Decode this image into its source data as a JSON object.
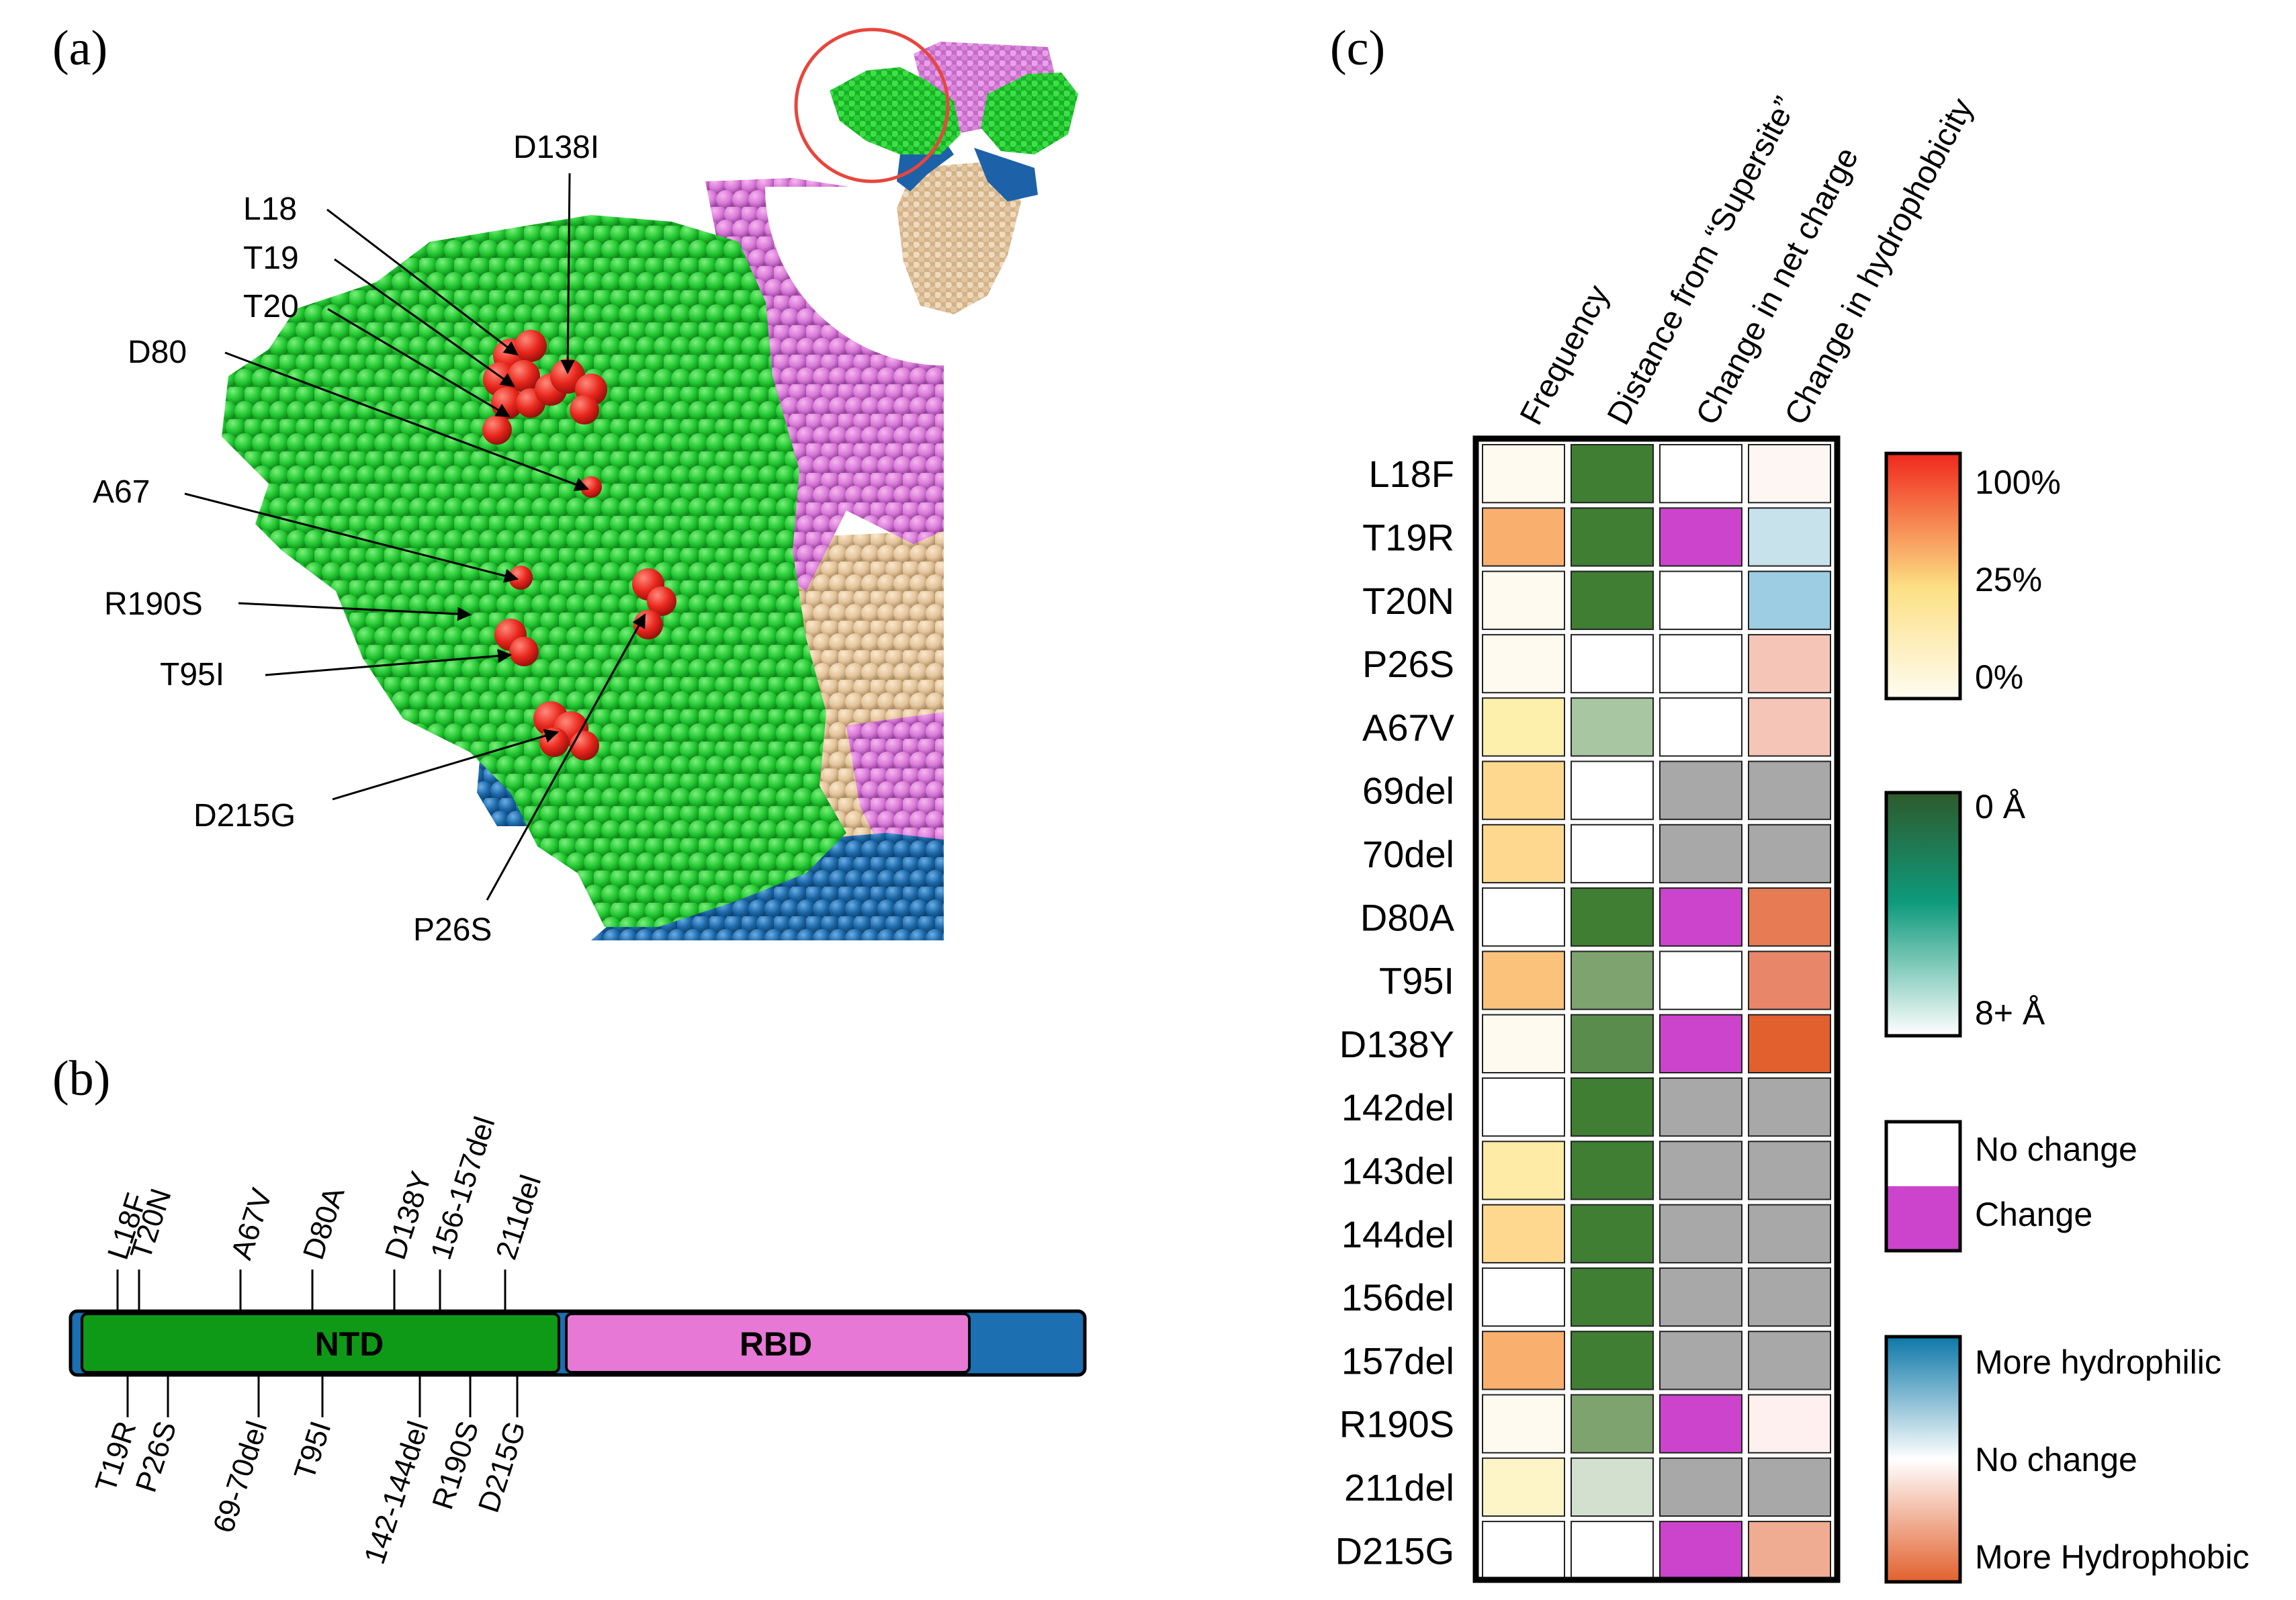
{
  "panels": {
    "a": "(a)",
    "b": "(b)",
    "c": "(c)"
  },
  "structure": {
    "callouts": [
      "D138I",
      "L18",
      "T19",
      "T20",
      "D80",
      "A67",
      "R190S",
      "T95I",
      "D215G",
      "P26S"
    ],
    "colors": {
      "ntd": "#22c832",
      "rbd_region": "#d87ad8",
      "s2": "#e3c39a",
      "blue": "#1c68a8",
      "mutation": "#e8261c",
      "circle": "#e8463c"
    }
  },
  "domain_map": {
    "domains": [
      {
        "name": "NTD",
        "color": "#0e9a16"
      },
      {
        "name": "RBD",
        "color": "#e878d6"
      }
    ],
    "bar_color": "#1c6fb0",
    "top_labels": [
      "L18F",
      "T20N",
      "A67V",
      "D80A",
      "D138Y",
      "156-157del",
      "211del"
    ],
    "bottom_labels": [
      "T19R",
      "P26S",
      "69-70del",
      "T95I",
      "142-144del",
      "R190S",
      "D215G"
    ]
  },
  "heatmap": {
    "columns": [
      "Frequency",
      "Distance from “Supersite”",
      "Change in net charge",
      "Change in hydrophobicity"
    ],
    "rows": [
      {
        "mutation": "L18F",
        "cells": [
          "#fefaf0",
          "#3f7e33",
          "#ffffff",
          "#fdf6f3"
        ]
      },
      {
        "mutation": "T19R",
        "cells": [
          "#f9b06e",
          "#3f7e33",
          "#cc44cc",
          "#c8e2ec"
        ]
      },
      {
        "mutation": "T20N",
        "cells": [
          "#fefaf0",
          "#3f7e33",
          "#ffffff",
          "#9ccde2"
        ]
      },
      {
        "mutation": "P26S",
        "cells": [
          "#fefaf0",
          "#ffffff",
          "#ffffff",
          "#f5c6b8"
        ]
      },
      {
        "mutation": "A67V",
        "cells": [
          "#fdefac",
          "#a9c6a3",
          "#ffffff",
          "#f5c6b8"
        ]
      },
      {
        "mutation": "69del",
        "cells": [
          "#fdd88e",
          "#ffffff",
          "#a8a8a8",
          "#a8a8a8"
        ]
      },
      {
        "mutation": "70del",
        "cells": [
          "#fdd88e",
          "#ffffff",
          "#a8a8a8",
          "#a8a8a8"
        ]
      },
      {
        "mutation": "D80A",
        "cells": [
          "#ffffff",
          "#3f7e33",
          "#cc44cc",
          "#e77b53"
        ]
      },
      {
        "mutation": "T95I",
        "cells": [
          "#fbc27c",
          "#7ea36e",
          "#ffffff",
          "#e8866a"
        ]
      },
      {
        "mutation": "D138Y",
        "cells": [
          "#fefaf0",
          "#5a8d4d",
          "#cc44cc",
          "#e25f2e"
        ]
      },
      {
        "mutation": "142del",
        "cells": [
          "#ffffff",
          "#3f7e33",
          "#a8a8a8",
          "#a8a8a8"
        ]
      },
      {
        "mutation": "143del",
        "cells": [
          "#fdeba6",
          "#3f7e33",
          "#a8a8a8",
          "#a8a8a8"
        ]
      },
      {
        "mutation": "144del",
        "cells": [
          "#fdd88e",
          "#3f7e33",
          "#a8a8a8",
          "#a8a8a8"
        ]
      },
      {
        "mutation": "156del",
        "cells": [
          "#ffffff",
          "#3f7e33",
          "#a8a8a8",
          "#a8a8a8"
        ]
      },
      {
        "mutation": "157del",
        "cells": [
          "#f9b06e",
          "#3f7e33",
          "#a8a8a8",
          "#a8a8a8"
        ]
      },
      {
        "mutation": "R190S",
        "cells": [
          "#fefaf0",
          "#7ea36e",
          "#cc44cc",
          "#fdf0ee"
        ]
      },
      {
        "mutation": "211del",
        "cells": [
          "#fdf5c8",
          "#d3e0cf",
          "#a8a8a8",
          "#a8a8a8"
        ]
      },
      {
        "mutation": "D215G",
        "cells": [
          "#ffffff",
          "#ffffff",
          "#cc44cc",
          "#efac92"
        ]
      }
    ]
  },
  "legends": {
    "frequency": {
      "labels": [
        "100%",
        "25%",
        "0%"
      ],
      "colors": [
        "#f0281c",
        "#fce084",
        "#fffcf2"
      ]
    },
    "distance": {
      "labels": [
        "0 Å",
        "8+ Å"
      ],
      "colors": [
        "#2e5a2c",
        "#0e9a7c",
        "#ffffff"
      ]
    },
    "charge": {
      "labels": [
        "No change",
        "Change"
      ],
      "colors": [
        "#ffffff",
        "#cc44cc"
      ]
    },
    "hydro": {
      "labels": [
        "More hydrophilic",
        "No change",
        "More Hydrophobic"
      ],
      "colors": [
        "#0d78a8",
        "#ffffff",
        "#e2612e"
      ]
    }
  }
}
